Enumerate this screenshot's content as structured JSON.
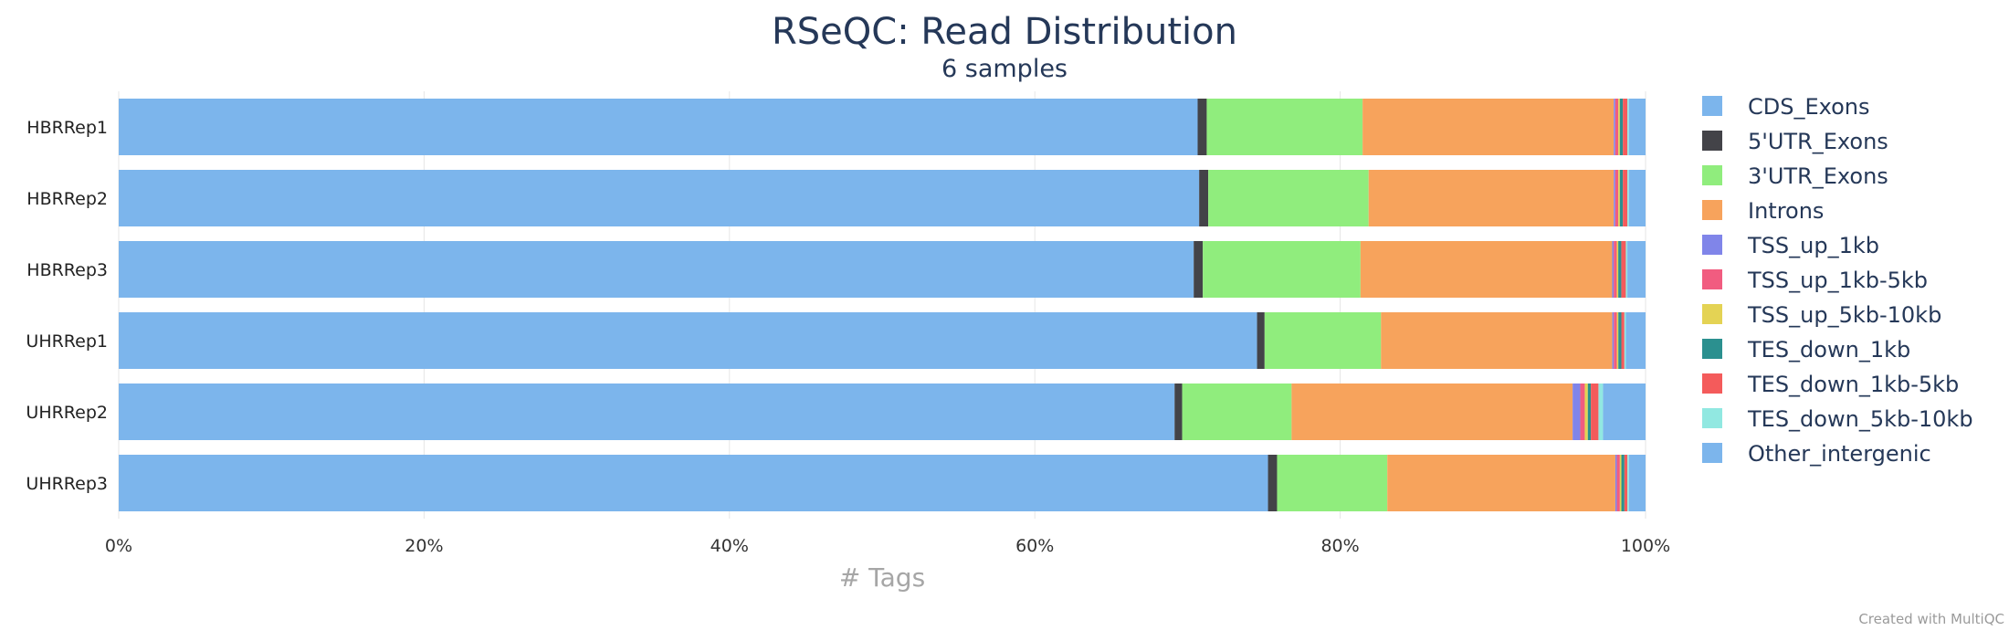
{
  "chart_data": {
    "type": "bar",
    "orientation": "horizontal",
    "stacked": "percent",
    "title": "RSeQC: Read Distribution",
    "subtitle": "6 samples",
    "xlabel": "# Tags",
    "ylabel": "",
    "xlim": [
      0,
      100
    ],
    "x_ticks": [
      "0%",
      "20%",
      "40%",
      "60%",
      "80%",
      "100%"
    ],
    "grid": true,
    "legend_position": "right",
    "categories": [
      "HBRRep1",
      "HBRRep2",
      "HBRRep3",
      "UHRRep1",
      "UHRRep2",
      "UHRRep3"
    ],
    "series": [
      {
        "name": "CDS_Exons",
        "color": "#7cb5ec",
        "values": [
          71.3,
          71.4,
          70.9,
          75.3,
          69.5,
          76.1
        ]
      },
      {
        "name": "5'UTR_Exons",
        "color": "#434348",
        "values": [
          0.6,
          0.6,
          0.6,
          0.5,
          0.5,
          0.6
        ]
      },
      {
        "name": "3'UTR_Exons",
        "color": "#90ed7d",
        "values": [
          10.3,
          10.6,
          10.4,
          7.7,
          7.2,
          7.3
        ]
      },
      {
        "name": "Introns",
        "color": "#f7a35c",
        "values": [
          16.6,
          16.2,
          16.6,
          15.3,
          18.5,
          15.1
        ]
      },
      {
        "name": "TSS_up_1kb",
        "color": "#8085e9",
        "values": [
          0.1,
          0.1,
          0.1,
          0.1,
          0.5,
          0.1
        ]
      },
      {
        "name": "TSS_up_1kb-5kb",
        "color": "#f15c80",
        "values": [
          0.2,
          0.2,
          0.2,
          0.2,
          0.3,
          0.2
        ]
      },
      {
        "name": "TSS_up_5kb-10kb",
        "color": "#e4d354",
        "values": [
          0.1,
          0.1,
          0.1,
          0.1,
          0.2,
          0.1
        ]
      },
      {
        "name": "TES_down_1kb",
        "color": "#2b908f",
        "values": [
          0.2,
          0.2,
          0.2,
          0.2,
          0.2,
          0.2
        ]
      },
      {
        "name": "TES_down_1kb-5kb",
        "color": "#f45b5b",
        "values": [
          0.3,
          0.3,
          0.3,
          0.2,
          0.5,
          0.2
        ]
      },
      {
        "name": "TES_down_5kb-10kb",
        "color": "#91e8e1",
        "values": [
          0.1,
          0.1,
          0.1,
          0.1,
          0.3,
          0.1
        ]
      },
      {
        "name": "Other_intergenic",
        "color": "#7cb5ec",
        "values": [
          1.1,
          1.1,
          1.2,
          1.3,
          2.8,
          1.1
        ]
      }
    ],
    "credit": "Created with MultiQC"
  }
}
